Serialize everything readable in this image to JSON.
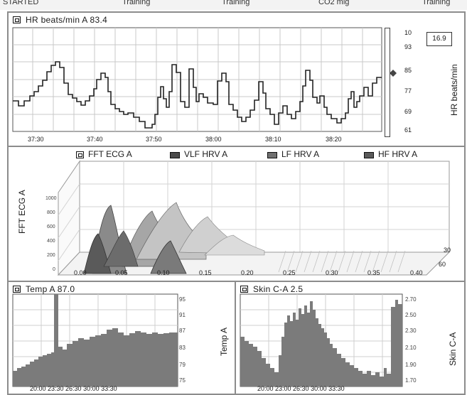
{
  "header": {
    "items": [
      "STARTED",
      "Training",
      "Training",
      "CO2 mig",
      "Training"
    ]
  },
  "hr_panel": {
    "title": "HR beats/min A  83.4",
    "side_label": "HR beats/min",
    "value_box": "16.9",
    "y_ticks": [
      "10",
      "93",
      "85",
      "77",
      "69",
      "61"
    ],
    "x_ticks": [
      "37:30",
      "37:40",
      "37:50",
      "38:00",
      "38:10",
      "38:20"
    ],
    "arrow_icon": "diamond-marker-icon"
  },
  "fft_panel": {
    "legend": [
      "FFT ECG A",
      "VLF HRV A",
      "LF HRV A",
      "HF HRV A"
    ],
    "legend_colors": [
      "#ffffff",
      "#4a4a4a",
      "#707070",
      "#5a5a5a"
    ],
    "axis_label": "FFT ECG A",
    "z_ticks": [
      "1000",
      "800",
      "600",
      "400",
      "200",
      "0"
    ],
    "x_ticks": [
      "0.00",
      "0.05",
      "0.10",
      "0.15",
      "0.20",
      "0.25",
      "0.30",
      "0.35",
      "0.40"
    ],
    "depth_ticks": [
      "30",
      "60"
    ]
  },
  "temp_panel": {
    "title": "Temp A  87.0",
    "side_label": "Temp A",
    "y_ticks": [
      "95",
      "91",
      "87",
      "83",
      "79",
      "75"
    ],
    "x_ticks": "20:00 23:30 26:30 30:00 33:30",
    "bar_color": "#7b7b7b"
  },
  "skin_panel": {
    "title": "Skin C-A  2.5",
    "side_label": "Skin C-A",
    "y_ticks": [
      "2.70",
      "2.50",
      "2.30",
      "2.10",
      "1.90",
      "1.70"
    ],
    "x_ticks": "20:00 23:00 26:30 30:00 33:30",
    "bar_color": "#7b7b7b"
  }
}
